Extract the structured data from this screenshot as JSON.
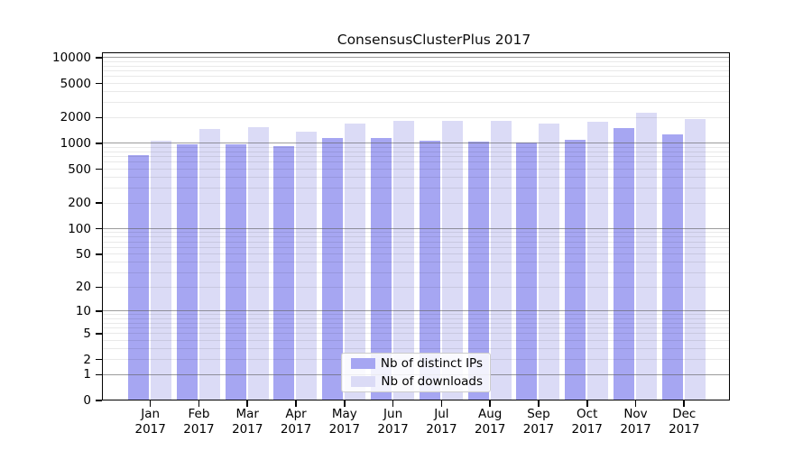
{
  "title": "ConsensusClusterPlus 2017",
  "colors": {
    "distinct_ips_bar": "#a6a6f2",
    "downloads_bar": "#dbdbf6",
    "grid_major": "#5f5f5f",
    "grid_minor": "#e9e9e9",
    "axis": "#000000",
    "legend_border": "#cccccc"
  },
  "legend": {
    "items": [
      {
        "label": "Nb of distinct IPs",
        "color": "#a6a6f2"
      },
      {
        "label": "Nb of downloads",
        "color": "#dbdbf6"
      }
    ]
  },
  "chart_data": {
    "type": "bar",
    "title": "ConsensusClusterPlus 2017",
    "y_scale": "log10(value+1)",
    "categories": [
      "Jan",
      "Feb",
      "Mar",
      "Apr",
      "May",
      "Jun",
      "Jul",
      "Aug",
      "Sep",
      "Oct",
      "Nov",
      "Dec"
    ],
    "year_label": "2017",
    "series": [
      {
        "name": "Nb of distinct IPs",
        "color": "#a6a6f2",
        "values": [
          745,
          990,
          1000,
          950,
          1175,
          1185,
          1095,
          1060,
          1040,
          1120,
          1520,
          1305
        ]
      },
      {
        "name": "Nb of downloads",
        "color": "#dbdbf6",
        "values": [
          1095,
          1500,
          1575,
          1400,
          1720,
          1880,
          1845,
          1860,
          1720,
          1800,
          2330,
          1955
        ]
      }
    ],
    "y_ticks": [
      0,
      1,
      2,
      5,
      10,
      20,
      50,
      100,
      200,
      500,
      1000,
      2000,
      5000,
      10000
    ],
    "ylim": [
      0,
      11500
    ],
    "grid": "horizontal, major lines at powers of 10, faint minor lines at 2-9 multiples, drawn over bars",
    "legend_position": "inside bottom-center",
    "bar_layout": "grouped pairs per month, distinct-IPs bar left, downloads bar right"
  }
}
